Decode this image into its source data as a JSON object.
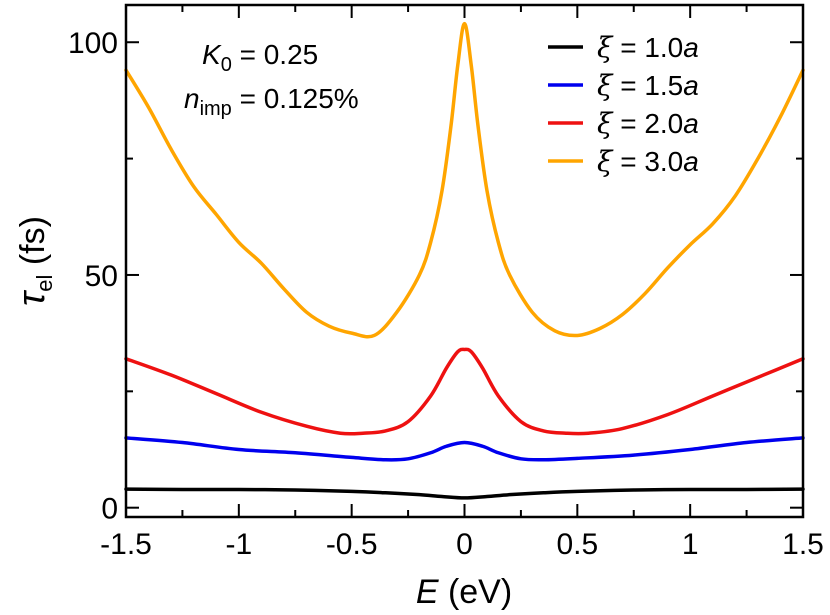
{
  "chart_data": {
    "type": "line",
    "title": "",
    "xlabel_var": "E",
    "xlabel_unit": "(eV)",
    "ylabel_var": "τ",
    "ylabel_sub": "el",
    "ylabel_unit": "(fs)",
    "xlim": [
      -1.5,
      1.5
    ],
    "ylim": [
      -2,
      108
    ],
    "xticks": [
      -1.5,
      -1,
      -0.5,
      0,
      0.5,
      1,
      1.5
    ],
    "xtick_labels": [
      "-1.5",
      "-1",
      "-0.5",
      "0",
      "0.5",
      "1",
      "1.5"
    ],
    "yticks": [
      0,
      50,
      100
    ],
    "ytick_labels": [
      "0",
      "50",
      "100"
    ],
    "grid": false,
    "legend_position": "top-right",
    "annotations": {
      "k0_var": "K",
      "k0_sub": "0",
      "k0_value": "= 0.25",
      "nimp_var": "n",
      "nimp_sub": "imp",
      "nimp_value": "= 0.125%"
    },
    "series": [
      {
        "name": "ξ = 1.0a",
        "legend_symbol": "ξ",
        "legend_eq": " = 1.0",
        "legend_unit": "a",
        "color": "#000000",
        "x": [
          -1.5,
          -1.25,
          -1.0,
          -0.75,
          -0.5,
          -0.35,
          -0.2,
          -0.1,
          0.0,
          0.1,
          0.2,
          0.35,
          0.5,
          0.75,
          1.0,
          1.25,
          1.5
        ],
        "values": [
          4.0,
          3.9,
          3.9,
          3.8,
          3.5,
          3.2,
          2.8,
          2.4,
          2.1,
          2.4,
          2.8,
          3.2,
          3.5,
          3.8,
          3.9,
          3.9,
          4.0
        ]
      },
      {
        "name": "ξ = 1.5a",
        "legend_symbol": "ξ",
        "legend_eq": " = 1.5",
        "legend_unit": "a",
        "color": "#0000ee",
        "x": [
          -1.5,
          -1.25,
          -1.0,
          -0.75,
          -0.5,
          -0.35,
          -0.25,
          -0.15,
          -0.08,
          0.0,
          0.08,
          0.15,
          0.25,
          0.35,
          0.5,
          0.75,
          1.0,
          1.25,
          1.5
        ],
        "values": [
          15.0,
          14.0,
          12.5,
          11.8,
          10.8,
          10.3,
          10.5,
          11.8,
          13.2,
          14.0,
          13.2,
          11.8,
          10.5,
          10.3,
          10.6,
          11.3,
          12.5,
          14.0,
          15.0
        ]
      },
      {
        "name": "ξ = 2.0a",
        "legend_symbol": "ξ",
        "legend_eq": " = 2.0",
        "legend_unit": "a",
        "color": "#ee1111",
        "x": [
          -1.5,
          -1.3,
          -1.1,
          -0.9,
          -0.7,
          -0.55,
          -0.45,
          -0.35,
          -0.25,
          -0.15,
          -0.08,
          -0.03,
          0.0,
          0.03,
          0.08,
          0.15,
          0.25,
          0.35,
          0.45,
          0.55,
          0.7,
          0.9,
          1.1,
          1.3,
          1.5
        ],
        "values": [
          32.0,
          28.5,
          24.5,
          20.5,
          17.5,
          16.0,
          16.0,
          16.5,
          18.5,
          24.0,
          30.0,
          33.5,
          34.0,
          33.5,
          30.0,
          24.0,
          18.5,
          16.5,
          16.0,
          16.0,
          17.0,
          20.0,
          24.0,
          28.0,
          32.0
        ]
      },
      {
        "name": "ξ = 3.0a",
        "legend_symbol": "ξ",
        "legend_eq": " = 3.0",
        "legend_unit": "a",
        "color": "#ffa500",
        "x": [
          -1.5,
          -1.4,
          -1.3,
          -1.2,
          -1.1,
          -1.0,
          -0.9,
          -0.8,
          -0.7,
          -0.6,
          -0.5,
          -0.4,
          -0.3,
          -0.2,
          -0.15,
          -0.1,
          -0.06,
          -0.03,
          0.0,
          0.03,
          0.06,
          0.1,
          0.15,
          0.2,
          0.3,
          0.4,
          0.5,
          0.6,
          0.7,
          0.8,
          0.9,
          1.0,
          1.1,
          1.2,
          1.3,
          1.4,
          1.5
        ],
        "values": [
          94.0,
          86.0,
          77.0,
          69.0,
          63.0,
          57.0,
          52.5,
          47.0,
          42.0,
          39.0,
          37.5,
          37.0,
          42.0,
          50.0,
          57.0,
          68.0,
          82.0,
          95.0,
          104.0,
          95.0,
          82.0,
          68.0,
          57.0,
          50.0,
          42.0,
          38.0,
          37.0,
          38.5,
          41.5,
          46.0,
          51.5,
          56.5,
          61.0,
          67.0,
          75.0,
          84.0,
          94.0
        ]
      }
    ]
  }
}
